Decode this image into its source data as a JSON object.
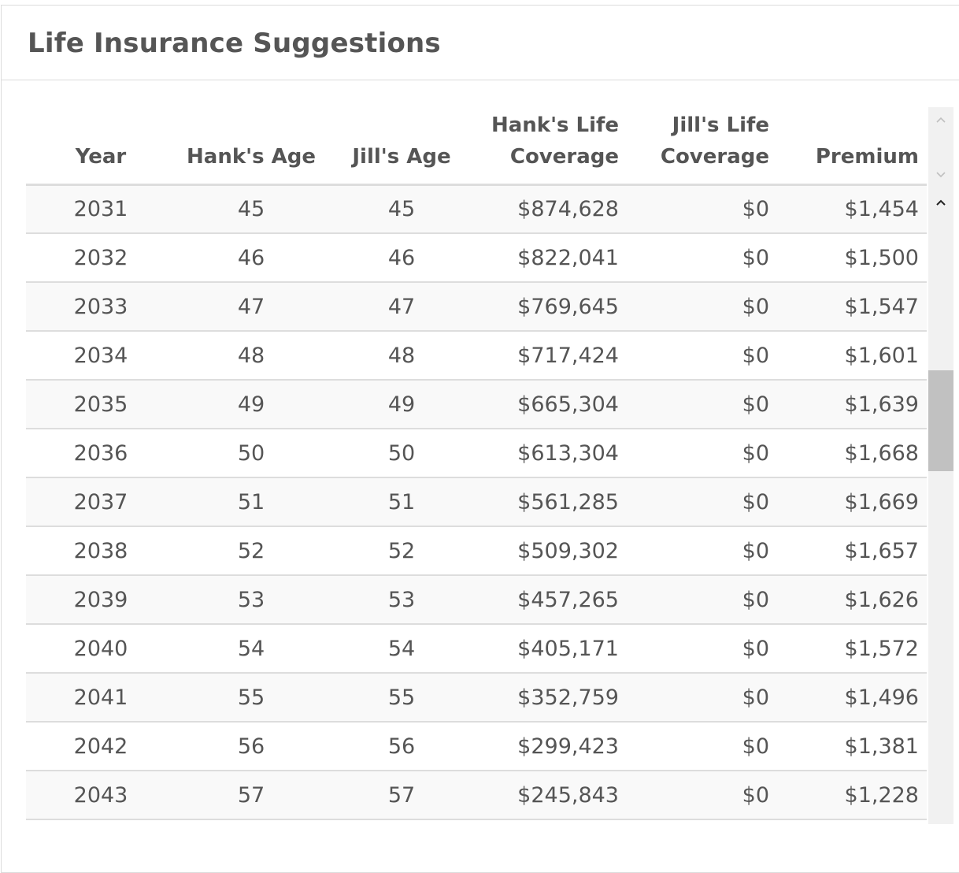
{
  "panel": {
    "title": "Life Insurance Suggestions"
  },
  "table": {
    "columns": [
      {
        "line1": "",
        "line2": "Year"
      },
      {
        "line1": "",
        "line2": "Hank's Age"
      },
      {
        "line1": "",
        "line2": "Jill's Age"
      },
      {
        "line1": "Hank's Life",
        "line2": "Coverage"
      },
      {
        "line1": "Jill's Life",
        "line2": "Coverage"
      },
      {
        "line1": "",
        "line2": "Premium"
      }
    ],
    "rows": [
      [
        "2031",
        "45",
        "45",
        "$874,628",
        "$0",
        "$1,454"
      ],
      [
        "2032",
        "46",
        "46",
        "$822,041",
        "$0",
        "$1,500"
      ],
      [
        "2033",
        "47",
        "47",
        "$769,645",
        "$0",
        "$1,547"
      ],
      [
        "2034",
        "48",
        "48",
        "$717,424",
        "$0",
        "$1,601"
      ],
      [
        "2035",
        "49",
        "49",
        "$665,304",
        "$0",
        "$1,639"
      ],
      [
        "2036",
        "50",
        "50",
        "$613,304",
        "$0",
        "$1,668"
      ],
      [
        "2037",
        "51",
        "51",
        "$561,285",
        "$0",
        "$1,669"
      ],
      [
        "2038",
        "52",
        "52",
        "$509,302",
        "$0",
        "$1,657"
      ],
      [
        "2039",
        "53",
        "53",
        "$457,265",
        "$0",
        "$1,626"
      ],
      [
        "2040",
        "54",
        "54",
        "$405,171",
        "$0",
        "$1,572"
      ],
      [
        "2041",
        "55",
        "55",
        "$352,759",
        "$0",
        "$1,496"
      ],
      [
        "2042",
        "56",
        "56",
        "$299,423",
        "$0",
        "$1,381"
      ],
      [
        "2043",
        "57",
        "57",
        "$245,843",
        "$0",
        "$1,228"
      ]
    ]
  },
  "scrollbar": {
    "up_icon": "chevron-up-icon",
    "down_icon": "chevron-down-icon",
    "position_fraction": 0.31
  }
}
